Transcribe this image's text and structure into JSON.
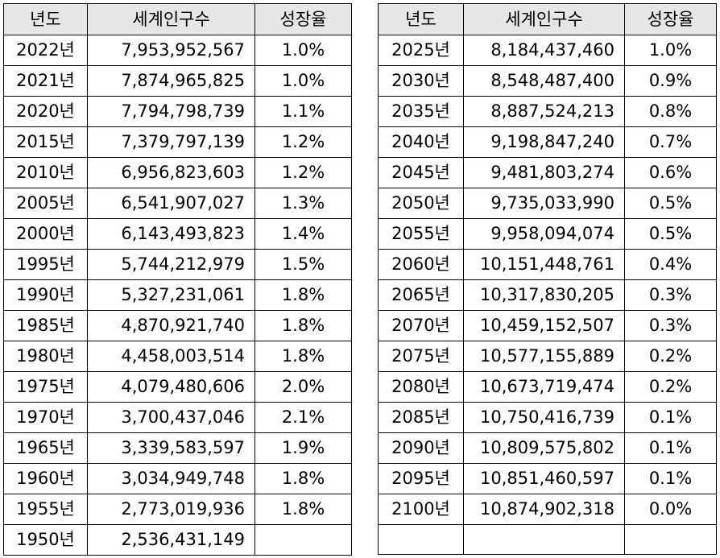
{
  "tables": [
    {
      "headers": [
        "년도",
        "세계인구수",
        "성장율"
      ],
      "rows": [
        {
          "year": "2022년",
          "population": "7,953,952,567",
          "rate": "1.0%"
        },
        {
          "year": "2021년",
          "population": "7,874,965,825",
          "rate": "1.0%"
        },
        {
          "year": "2020년",
          "population": "7,794,798,739",
          "rate": "1.1%"
        },
        {
          "year": "2015년",
          "population": "7,379,797,139",
          "rate": "1.2%"
        },
        {
          "year": "2010년",
          "population": "6,956,823,603",
          "rate": "1.2%"
        },
        {
          "year": "2005년",
          "population": "6,541,907,027",
          "rate": "1.3%"
        },
        {
          "year": "2000년",
          "population": "6,143,493,823",
          "rate": "1.4%"
        },
        {
          "year": "1995년",
          "population": "5,744,212,979",
          "rate": "1.5%"
        },
        {
          "year": "1990년",
          "population": "5,327,231,061",
          "rate": "1.8%"
        },
        {
          "year": "1985년",
          "population": "4,870,921,740",
          "rate": "1.8%"
        },
        {
          "year": "1980년",
          "population": "4,458,003,514",
          "rate": "1.8%"
        },
        {
          "year": "1975년",
          "population": "4,079,480,606",
          "rate": "2.0%"
        },
        {
          "year": "1970년",
          "population": "3,700,437,046",
          "rate": "2.1%"
        },
        {
          "year": "1965년",
          "population": "3,339,583,597",
          "rate": "1.9%"
        },
        {
          "year": "1960년",
          "population": "3,034,949,748",
          "rate": "1.8%"
        },
        {
          "year": "1955년",
          "population": "2,773,019,936",
          "rate": "1.8%"
        },
        {
          "year": "1950년",
          "population": "2,536,431,149",
          "rate": ""
        }
      ]
    },
    {
      "headers": [
        "년도",
        "세계인구수",
        "성장율"
      ],
      "rows": [
        {
          "year": "2025년",
          "population": "8,184,437,460",
          "rate": "1.0%"
        },
        {
          "year": "2030년",
          "population": "8,548,487,400",
          "rate": "0.9%"
        },
        {
          "year": "2035년",
          "population": "8,887,524,213",
          "rate": "0.8%"
        },
        {
          "year": "2040년",
          "population": "9,198,847,240",
          "rate": "0.7%"
        },
        {
          "year": "2045년",
          "population": "9,481,803,274",
          "rate": "0.6%"
        },
        {
          "year": "2050년",
          "population": "9,735,033,990",
          "rate": "0.5%"
        },
        {
          "year": "2055년",
          "population": "9,958,094,074",
          "rate": "0.5%"
        },
        {
          "year": "2060년",
          "population": "10,151,448,761",
          "rate": "0.4%"
        },
        {
          "year": "2065년",
          "population": "10,317,830,205",
          "rate": "0.3%"
        },
        {
          "year": "2070년",
          "population": "10,459,152,507",
          "rate": "0.3%"
        },
        {
          "year": "2075년",
          "population": "10,577,155,889",
          "rate": "0.2%"
        },
        {
          "year": "2080년",
          "population": "10,673,719,474",
          "rate": "0.2%"
        },
        {
          "year": "2085년",
          "population": "10,750,416,739",
          "rate": "0.1%"
        },
        {
          "year": "2090년",
          "population": "10,809,575,802",
          "rate": "0.1%"
        },
        {
          "year": "2095년",
          "population": "10,851,460,597",
          "rate": "0.1%"
        },
        {
          "year": "2100년",
          "population": "10,874,902,318",
          "rate": "0.0%"
        },
        {
          "year": "",
          "population": "",
          "rate": ""
        }
      ]
    }
  ],
  "colors": {
    "header_background": "#e7e6e6",
    "border": "#000000",
    "text": "#000000"
  }
}
